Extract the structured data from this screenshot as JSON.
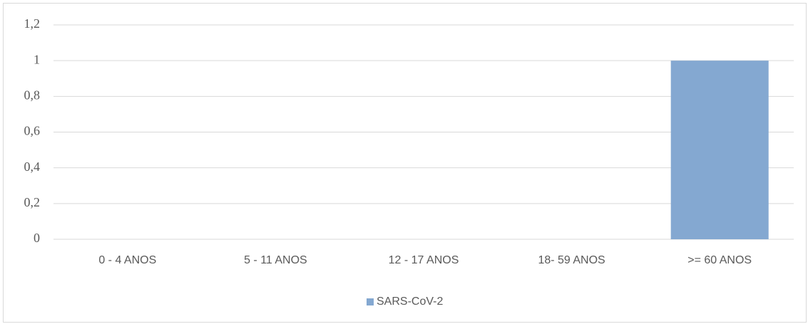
{
  "chart_data": {
    "type": "bar",
    "categories": [
      "0 - 4 ANOS",
      "5 - 11 ANOS",
      "12 - 17 ANOS",
      "18- 59 ANOS",
      ">= 60 ANOS"
    ],
    "series": [
      {
        "name": "SARS-CoV-2",
        "color": "#84a8d1",
        "values": [
          0,
          0,
          0,
          0,
          1
        ]
      }
    ],
    "ylim": [
      0,
      1.2
    ],
    "yticks": [
      0,
      {
        "value": 0.2,
        "label": "0,2"
      },
      {
        "value": 0.4,
        "label": "0,4"
      },
      {
        "value": 0.6,
        "label": "0,6"
      },
      {
        "value": 0.8,
        "label": "0,8"
      },
      1,
      {
        "value": 1.2,
        "label": "1,2"
      }
    ],
    "grid": true,
    "legend": "bottom"
  }
}
